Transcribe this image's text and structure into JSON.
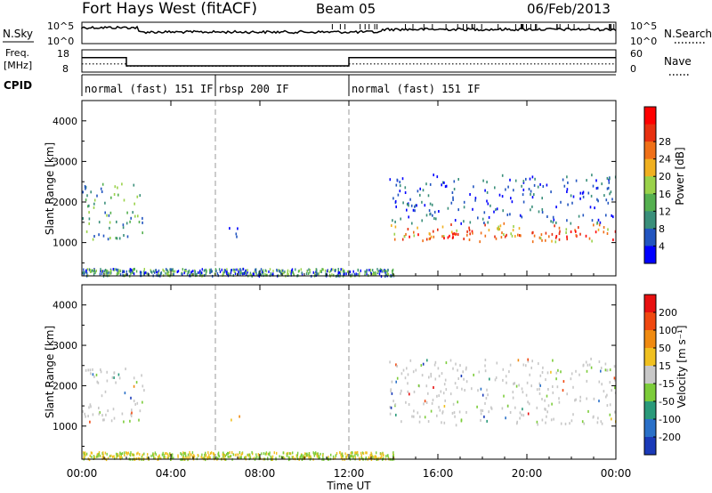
{
  "header": {
    "title": "Fort Hays West (fitACF)",
    "beam": "Beam 05",
    "date": "06/Feb/2013"
  },
  "top_panels": {
    "nsky": {
      "left_label": "N.Sky",
      "right_label": "N.Search",
      "left_ticks": [
        "10^5",
        "10^0"
      ],
      "right_ticks": [
        "10^5",
        "10^0"
      ]
    },
    "freq": {
      "left_label_line1": "Freq.",
      "left_label_line2": "[MHz]",
      "right_label": "Nave",
      "left_ticks": [
        "18",
        "8"
      ],
      "right_ticks": [
        "60",
        "0"
      ],
      "freq_steps_mhz": [
        {
          "from": 0,
          "to": 2,
          "value": 14.5
        },
        {
          "from": 2,
          "to": 12,
          "value": 10.8
        },
        {
          "from": 12,
          "to": 24,
          "value": 14.5
        }
      ],
      "nave_steps": [
        {
          "from": 0,
          "to": 2,
          "value": 22
        },
        {
          "from": 2,
          "to": 12,
          "value": 16
        },
        {
          "from": 12,
          "to": 24,
          "value": 22
        }
      ]
    },
    "cpid": {
      "label": "CPID",
      "segments": [
        {
          "start_hour": 0,
          "end_hour": 6,
          "name": "normal (fast) 151 IF"
        },
        {
          "start_hour": 6,
          "end_hour": 12,
          "name": "rbsp 200 IF"
        },
        {
          "start_hour": 12,
          "end_hour": 24,
          "name": "normal (fast) 151 IF"
        }
      ]
    }
  },
  "chart_data": [
    {
      "type": "heatmap",
      "name": "power",
      "ylabel": "Slant Range [km]",
      "xlabel": "Time UT",
      "xlim_hours": [
        0,
        24
      ],
      "ylim_km": [
        180,
        4500
      ],
      "y_ticks": [
        "1000",
        "2000",
        "3000",
        "4000"
      ],
      "colorbar": {
        "label": "Power [dB]",
        "ticks": [
          "4",
          "8",
          "12",
          "16",
          "20",
          "24",
          "28"
        ],
        "colors": [
          "#0000ff",
          "#2255c0",
          "#3a8f7a",
          "#55b050",
          "#9ad24a",
          "#f0b020",
          "#f07018",
          "#e83010",
          "#ff0000"
        ]
      },
      "echo_regions": [
        {
          "t_start": 0.0,
          "t_end": 2.8,
          "r_min": 1100,
          "r_max": 2500,
          "level": "mid"
        },
        {
          "t_start": 6.5,
          "t_end": 7.2,
          "r_min": 1100,
          "r_max": 1450,
          "level": "low"
        },
        {
          "t_start": 13.8,
          "t_end": 24.0,
          "r_min": 1050,
          "r_max": 2700,
          "level": "mixed"
        },
        {
          "t_start": 14.0,
          "t_end": 24.0,
          "r_min": 1100,
          "r_max": 1350,
          "level": "high"
        }
      ]
    },
    {
      "type": "heatmap",
      "name": "velocity",
      "ylabel": "Slant Range [km]",
      "xlabel": "Time UT",
      "xlim_hours": [
        0,
        24
      ],
      "ylim_km": [
        180,
        4500
      ],
      "y_ticks": [
        "1000",
        "2000",
        "3000",
        "4000"
      ],
      "colorbar": {
        "label": "Velocity [m s⁻¹]",
        "ticks": [
          "200",
          "100",
          "50",
          "15",
          "-15",
          "-50",
          "-100",
          "-200"
        ],
        "colors": [
          "#1a3ab8",
          "#2a70c8",
          "#2a9a7a",
          "#7ccc3a",
          "#c8c8c8",
          "#f0c020",
          "#f08a10",
          "#f04810",
          "#e81010"
        ]
      },
      "echo_regions": [
        {
          "t_start": 0.0,
          "t_end": 2.8,
          "r_min": 1100,
          "r_max": 2500,
          "level": "grey"
        },
        {
          "t_start": 6.5,
          "t_end": 7.2,
          "r_min": 1100,
          "r_max": 1300,
          "level": "orange"
        },
        {
          "t_start": 13.8,
          "t_end": 24.0,
          "r_min": 1050,
          "r_max": 2700,
          "level": "grey"
        }
      ]
    }
  ],
  "x_axis": {
    "label": "Time UT",
    "ticks": [
      "00:00",
      "04:00",
      "08:00",
      "12:00",
      "16:00",
      "20:00",
      "00:00"
    ]
  }
}
